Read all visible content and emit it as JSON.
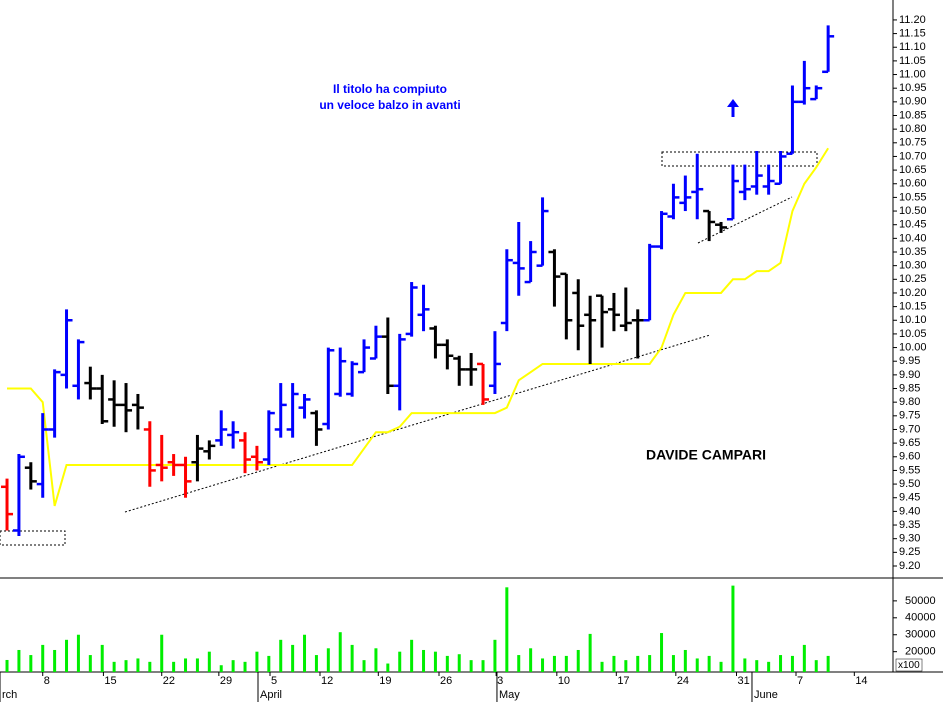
{
  "chart_data": [
    {
      "type": "ohlc",
      "title": "DAVIDE CAMPARI",
      "note": [
        "Il titolo ha compiuto",
        "un veloce balzo in avanti"
      ],
      "open": [
        9.49,
        9.33,
        9.56,
        9.5,
        9.7,
        9.9,
        9.86,
        9.87,
        9.85,
        9.81,
        9.79,
        9.79,
        9.7,
        9.57,
        9.58,
        9.57,
        9.58,
        9.62,
        9.66,
        9.68,
        9.66,
        9.6,
        9.59,
        9.7,
        9.7,
        9.78,
        9.76,
        9.72,
        9.83,
        9.83,
        9.91,
        9.96,
        10.04,
        9.86,
        10.05,
        10.12,
        10.07,
        10.01,
        9.96,
        9.92,
        9.94,
        9.86,
        10.09,
        10.31,
        10.24,
        10.3,
        10.35,
        10.27,
        10.2,
        10.12,
        10.19,
        10.14,
        10.08,
        10.1,
        10.1,
        10.37,
        10.48,
        10.53,
        10.57,
        10.5,
        10.45,
        10.47,
        10.57,
        10.59,
        10.59,
        10.6,
        10.71,
        10.9,
        10.91,
        11.01
      ],
      "high": [
        9.52,
        9.61,
        9.58,
        9.76,
        9.92,
        10.14,
        10.03,
        9.93,
        9.9,
        9.88,
        9.87,
        9.83,
        9.73,
        9.68,
        9.61,
        9.6,
        9.68,
        9.66,
        9.77,
        9.73,
        9.69,
        9.64,
        9.77,
        9.87,
        9.87,
        9.83,
        9.77,
        10.0,
        10.0,
        9.95,
        10.03,
        10.08,
        10.11,
        10.05,
        10.24,
        10.23,
        10.08,
        10.03,
        9.97,
        9.98,
        9.94,
        10.06,
        10.36,
        10.46,
        10.39,
        10.55,
        10.36,
        10.27,
        10.25,
        10.19,
        10.19,
        10.2,
        10.22,
        10.14,
        10.38,
        10.5,
        10.6,
        10.63,
        10.71,
        10.5,
        10.46,
        10.67,
        10.67,
        10.72,
        10.67,
        10.72,
        10.96,
        11.05,
        10.96,
        11.18
      ],
      "low": [
        9.33,
        9.31,
        9.48,
        9.45,
        9.67,
        9.85,
        9.81,
        9.81,
        9.72,
        9.71,
        9.69,
        9.7,
        9.49,
        9.51,
        9.53,
        9.45,
        9.51,
        9.59,
        9.64,
        9.63,
        9.54,
        9.55,
        9.57,
        9.67,
        9.67,
        9.74,
        9.64,
        9.7,
        9.82,
        9.82,
        9.91,
        9.96,
        9.83,
        9.77,
        10.04,
        10.06,
        9.96,
        9.92,
        9.86,
        9.86,
        9.79,
        9.83,
        10.06,
        10.19,
        10.24,
        10.3,
        10.15,
        10.03,
        9.99,
        9.94,
        10.0,
        10.06,
        10.06,
        9.96,
        10.1,
        10.36,
        10.47,
        10.5,
        10.47,
        10.39,
        10.42,
        10.47,
        10.54,
        10.56,
        10.56,
        10.6,
        10.71,
        10.89,
        10.91,
        11.01
      ],
      "close": [
        9.39,
        9.6,
        9.51,
        9.7,
        9.91,
        10.1,
        10.02,
        9.85,
        9.73,
        9.79,
        9.77,
        9.78,
        9.55,
        9.56,
        9.57,
        9.51,
        9.63,
        9.64,
        9.7,
        9.69,
        9.59,
        9.58,
        9.76,
        9.79,
        9.83,
        9.81,
        9.7,
        9.99,
        9.95,
        9.94,
        10.0,
        10.04,
        9.86,
        10.03,
        10.22,
        10.14,
        10.01,
        9.97,
        9.92,
        9.92,
        9.81,
        9.94,
        10.32,
        10.29,
        10.35,
        10.5,
        10.26,
        10.1,
        10.08,
        10.1,
        10.13,
        10.12,
        10.09,
        10.1,
        10.37,
        10.49,
        10.55,
        10.55,
        10.58,
        10.46,
        10.44,
        10.61,
        10.58,
        10.63,
        10.61,
        10.7,
        10.9,
        10.95,
        10.95,
        11.14
      ],
      "bar_colors": [
        "#ff0000",
        "#0000ff",
        "#000000",
        "#0000ff",
        "#0000ff",
        "#0000ff",
        "#0000ff",
        "#000000",
        "#000000",
        "#000000",
        "#000000",
        "#000000",
        "#ff0000",
        "#ff0000",
        "#ff0000",
        "#ff0000",
        "#000000",
        "#000000",
        "#0000ff",
        "#0000ff",
        "#ff0000",
        "#ff0000",
        "#0000ff",
        "#0000ff",
        "#0000ff",
        "#0000ff",
        "#000000",
        "#0000ff",
        "#0000ff",
        "#0000ff",
        "#0000ff",
        "#0000ff",
        "#000000",
        "#0000ff",
        "#0000ff",
        "#0000ff",
        "#000000",
        "#000000",
        "#000000",
        "#000000",
        "#ff0000",
        "#0000ff",
        "#0000ff",
        "#0000ff",
        "#0000ff",
        "#0000ff",
        "#000000",
        "#000000",
        "#000000",
        "#000000",
        "#000000",
        "#000000",
        "#000000",
        "#000000",
        "#0000ff",
        "#0000ff",
        "#0000ff",
        "#0000ff",
        "#0000ff",
        "#000000",
        "#000000",
        "#0000ff",
        "#0000ff",
        "#0000ff",
        "#0000ff",
        "#0000ff",
        "#0000ff",
        "#0000ff",
        "#0000ff",
        "#0000ff"
      ],
      "line": {
        "color": "#ffff00",
        "values": [
          9.85,
          9.85,
          9.85,
          9.8,
          9.42,
          9.57,
          9.57,
          9.57,
          9.57,
          9.57,
          9.57,
          9.57,
          9.57,
          9.57,
          9.57,
          9.57,
          9.57,
          9.57,
          9.57,
          9.57,
          9.57,
          9.57,
          9.57,
          9.57,
          9.57,
          9.57,
          9.57,
          9.57,
          9.57,
          9.57,
          9.63,
          9.69,
          9.69,
          9.71,
          9.76,
          9.76,
          9.76,
          9.76,
          9.76,
          9.76,
          9.76,
          9.76,
          9.78,
          9.88,
          9.91,
          9.94,
          9.94,
          9.94,
          9.94,
          9.94,
          9.94,
          9.94,
          9.94,
          9.94,
          9.94,
          10.0,
          10.12,
          10.2,
          10.2,
          10.2,
          10.2,
          10.25,
          10.25,
          10.28,
          10.28,
          10.31,
          10.5,
          10.6,
          10.66,
          10.73
        ]
      },
      "ylim": [
        9.156,
        11.273
      ],
      "yticks": [
        {
          "value": 9.2,
          "label": "9.20"
        },
        9.25,
        {
          "value": 9.3,
          "label": "9.30"
        },
        9.35,
        {
          "value": 9.4,
          "label": "9.40"
        },
        9.45,
        {
          "value": 9.5,
          "label": "9.50"
        },
        9.55,
        {
          "value": 9.6,
          "label": "9.60"
        },
        9.65,
        {
          "value": 9.7,
          "label": "9.70"
        },
        9.75,
        {
          "value": 9.8,
          "label": "9.80"
        },
        9.85,
        {
          "value": 9.9,
          "label": "9.90"
        },
        9.95,
        {
          "value": 10,
          "label": "10.00"
        },
        10.05,
        {
          "value": 10.1,
          "label": "10.10"
        },
        10.15,
        {
          "value": 10.2,
          "label": "10.20"
        },
        10.25,
        {
          "value": 10.3,
          "label": "10.30"
        },
        10.35,
        {
          "value": 10.4,
          "label": "10.40"
        },
        10.45,
        {
          "value": 10.5,
          "label": "10.50"
        },
        10.55,
        {
          "value": 10.6,
          "label": "10.60"
        },
        10.65,
        {
          "value": 10.7,
          "label": "10.70"
        },
        10.75,
        {
          "value": 10.8,
          "label": "10.80"
        },
        10.85,
        {
          "value": 10.9,
          "label": "10.90"
        },
        10.95,
        {
          "value": 11,
          "label": "11.00"
        },
        11.05,
        {
          "value": 11.1,
          "label": "11.10"
        },
        11.15,
        {
          "value": 11.2,
          "label": "11.20"
        }
      ]
    },
    {
      "type": "bar",
      "unit_label": "x100",
      "color": "#00ee00",
      "values": [
        15100,
        21000,
        18000,
        24000,
        21000,
        27000,
        30000,
        18000,
        24000,
        14000,
        15000,
        16000,
        14000,
        30000,
        14000,
        16000,
        16000,
        20000,
        12000,
        15000,
        14000,
        20000,
        17500,
        27000,
        24000,
        30000,
        18000,
        22000,
        31500,
        24000,
        15000,
        22000,
        13000,
        20000,
        27000,
        21000,
        20000,
        17500,
        18500,
        15000,
        15000,
        27000,
        58000,
        18000,
        22000,
        16000,
        17500,
        17500,
        21000,
        30500,
        14000,
        17500,
        15000,
        17500,
        18000,
        31000,
        18000,
        21000,
        16000,
        17500,
        14000,
        59000,
        16000,
        15000,
        14000,
        18000,
        17500,
        24000,
        15000,
        17500
      ],
      "ylim": [
        8000,
        63500
      ],
      "yticks": [
        20000,
        30000,
        40000,
        50000
      ],
      "xlim": [
        -0.59,
        74.45
      ],
      "xticks": [
        {
          "value": 3,
          "label": "8"
        },
        {
          "value": 8.1,
          "label": "15"
        },
        {
          "value": 13,
          "label": "22"
        },
        {
          "value": 17.8,
          "label": "29"
        },
        {
          "value": 22.1,
          "label": "5"
        },
        {
          "value": 26.3,
          "label": "12"
        },
        {
          "value": 31.2,
          "label": "19"
        },
        {
          "value": 36.3,
          "label": "26"
        },
        {
          "value": 41.1,
          "label": "3"
        },
        {
          "value": 46.2,
          "label": "10"
        },
        {
          "value": 51.2,
          "label": "17"
        },
        {
          "value": 56.2,
          "label": "24"
        },
        {
          "value": 61.3,
          "label": "31"
        },
        {
          "value": 66.3,
          "label": "7"
        },
        {
          "value": 71.2,
          "label": "14"
        }
      ],
      "month_ticks": [
        {
          "value": -0.59,
          "label": "rch"
        },
        {
          "value": 21.09,
          "label": "April"
        },
        {
          "value": 41.17,
          "label": "May"
        },
        {
          "value": 62.6,
          "label": "June"
        }
      ]
    }
  ]
}
